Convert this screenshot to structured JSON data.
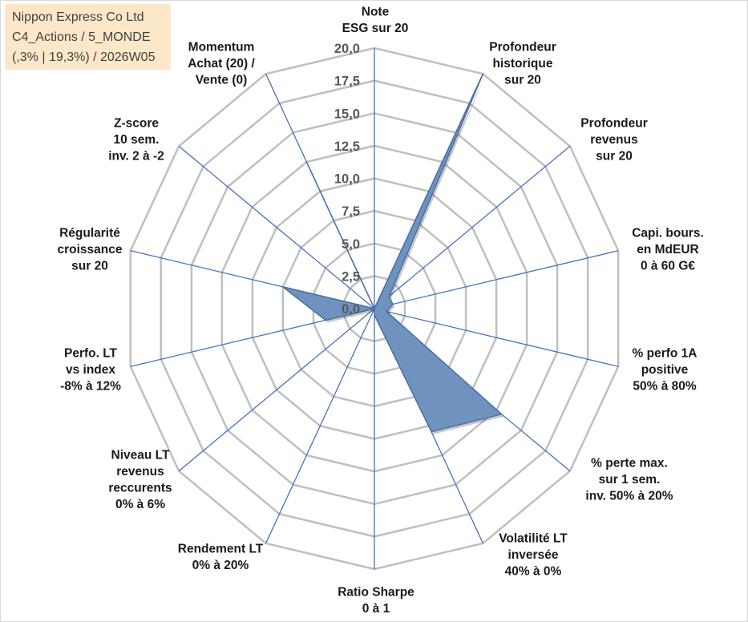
{
  "title_box": {
    "lines": [
      "Nippon Express Co Ltd",
      "C4_Actions / 5_MONDE",
      "(,3% | 19,3%) / 2026W05"
    ]
  },
  "colors": {
    "title_box_bg": "#FCE8C8",
    "frame": "#D9D9D9",
    "grid": "#BFBFBF",
    "axis": "#4472C4",
    "series_fill": "#7092BE",
    "series_stroke": "#4A6FA5"
  },
  "chart_data": {
    "type": "radar",
    "categories": [
      [
        "Note",
        "ESG sur 20"
      ],
      [
        "Profondeur",
        "historique",
        "sur 20"
      ],
      [
        "Profondeur",
        "revenus",
        "sur 20"
      ],
      [
        "Capi. bours.",
        "en MdEUR",
        "0 à 60 G€"
      ],
      [
        "% perfo 1A",
        "positive",
        "50% à 80%"
      ],
      [
        "% perte max.",
        "sur 1 sem.",
        "inv. 50% à 20%"
      ],
      [
        "Volatilité LT",
        "inversée",
        "40% à 0%"
      ],
      [
        "Ratio Sharpe",
        "0 à 1"
      ],
      [
        "Rendement LT",
        "0% à 20%"
      ],
      [
        "Niveau LT",
        "revenus",
        "reccurents",
        "0% à 6%"
      ],
      [
        "Perfo. LT",
        "vs index",
        "-8% à 12%"
      ],
      [
        "Régularité",
        "croissance",
        "sur 20"
      ],
      [
        "Z-score",
        "10 sem.",
        "inv. 2 à -2"
      ],
      [
        "Momentum",
        "Achat (20) /",
        "Vente (0)"
      ]
    ],
    "series": [
      {
        "values": [
          0,
          20,
          1.5,
          1.5,
          1,
          13,
          10.5,
          0.5,
          0,
          0,
          4,
          7.5,
          0,
          12.5
        ]
      }
    ],
    "range": [
      0,
      20
    ],
    "ticks": [
      {
        "value": 0,
        "label": "0,0"
      },
      {
        "value": 2.5,
        "label": "2,5"
      },
      {
        "value": 5,
        "label": "5,0"
      },
      {
        "value": 7.5,
        "label": "7,5"
      },
      {
        "value": 10,
        "label": "10,0"
      },
      {
        "value": 12.5,
        "label": "12,5"
      },
      {
        "value": 15,
        "label": "15,0"
      },
      {
        "value": 17.5,
        "label": "17,5"
      },
      {
        "value": 20,
        "label": "20,0"
      }
    ],
    "grid": true
  }
}
